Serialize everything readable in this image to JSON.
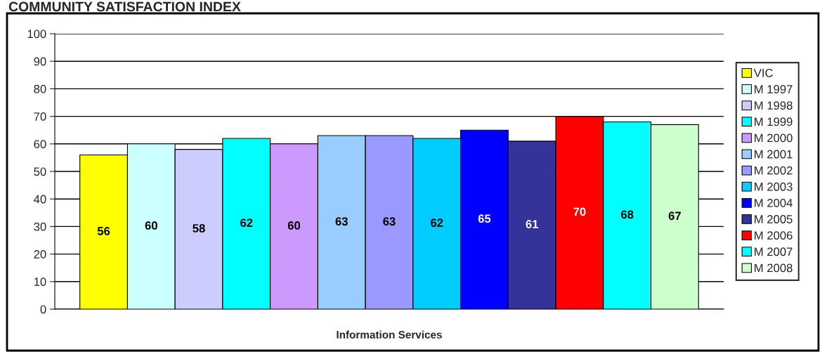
{
  "chart_data": {
    "type": "bar",
    "title": "COMMUNITY SATISFACTION INDEX",
    "categories": [
      "Information Services"
    ],
    "ylim": [
      0,
      100
    ],
    "yticks": [
      0,
      10,
      20,
      30,
      40,
      50,
      60,
      70,
      80,
      90,
      100
    ],
    "grid": "y",
    "legend": "right",
    "data_labels": true,
    "series": [
      {
        "name": "VIC",
        "color": "#ffff00",
        "values": [
          56
        ]
      },
      {
        "name": "M 1997",
        "color": "#ccffff",
        "values": [
          60
        ]
      },
      {
        "name": "M 1998",
        "color": "#ccccff",
        "values": [
          58
        ]
      },
      {
        "name": "M 1999",
        "color": "#00ffff",
        "values": [
          62
        ]
      },
      {
        "name": "M 2000",
        "color": "#cc99ff",
        "values": [
          60
        ]
      },
      {
        "name": "M 2001",
        "color": "#99ccff",
        "values": [
          63
        ]
      },
      {
        "name": "M 2002",
        "color": "#9999ff",
        "values": [
          63
        ]
      },
      {
        "name": "M 2003",
        "color": "#00ccff",
        "values": [
          62
        ]
      },
      {
        "name": "M 2004",
        "color": "#0000ff",
        "values": [
          65
        ]
      },
      {
        "name": "M 2005",
        "color": "#333399",
        "values": [
          61
        ]
      },
      {
        "name": "M 2006",
        "color": "#ff0000",
        "values": [
          70
        ]
      },
      {
        "name": "M 2007",
        "color": "#00ffff",
        "values": [
          68
        ]
      },
      {
        "name": "M 2008",
        "color": "#ccffcc",
        "values": [
          67
        ]
      }
    ]
  }
}
